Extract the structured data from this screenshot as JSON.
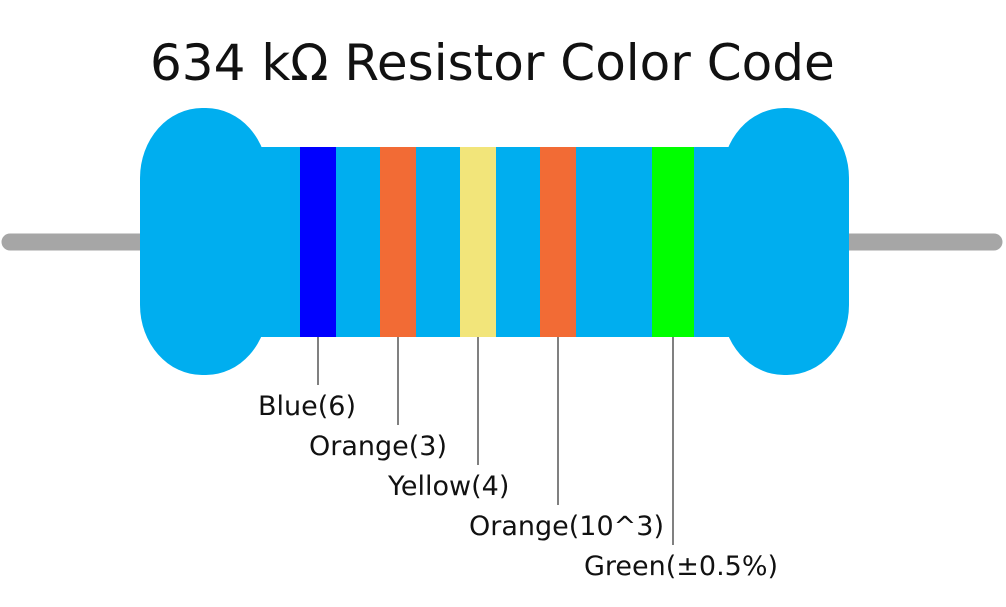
{
  "title": "634 kΩ Resistor Color Code",
  "bands": [
    {
      "label": "Blue(6)",
      "color": "#0000ff"
    },
    {
      "label": "Orange(3)",
      "color": "#f26b35"
    },
    {
      "label": "Yellow(4)",
      "color": "#f2e57a"
    },
    {
      "label": "Orange(10^3)",
      "color": "#f26b35"
    },
    {
      "label": "Green(±0.5%)",
      "color": "#00ff00"
    }
  ]
}
